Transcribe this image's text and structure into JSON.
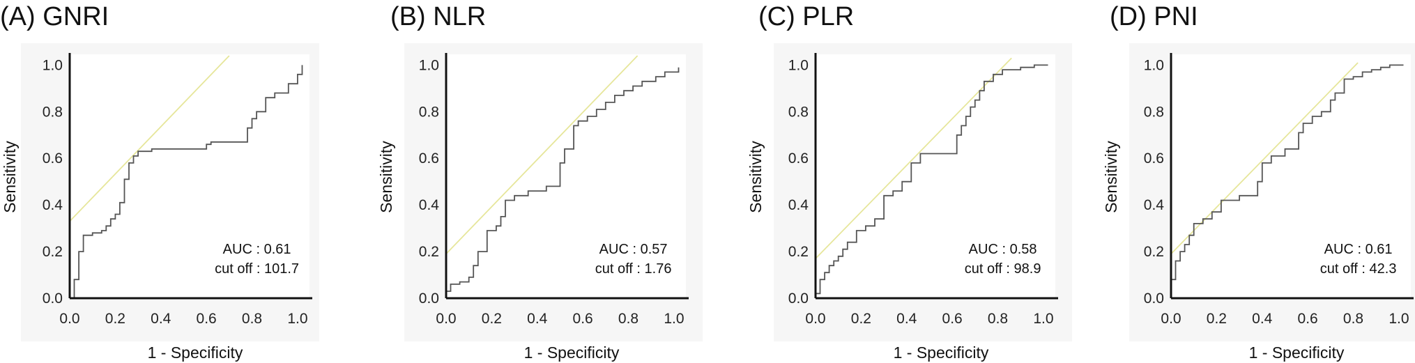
{
  "chart_data": [
    {
      "type": "line",
      "panel_title": "(A) GNRI",
      "xlabel": "1 - Specificity",
      "ylabel": "Sensitivity",
      "xlim": [
        0,
        1.04
      ],
      "ylim": [
        0,
        1.04
      ],
      "xticks": [
        "0.0",
        "0.2",
        "0.4",
        "0.6",
        "0.8",
        "1.0"
      ],
      "yticks": [
        "0.0",
        "0.2",
        "0.4",
        "0.6",
        "0.8",
        "1.0"
      ],
      "annotation": {
        "auc": "AUC : 0.61",
        "cutoff": "cut off : 101.7"
      },
      "reference_line": {
        "name": "tangent",
        "color": "#e6e69a",
        "x": [
          0,
          0.7
        ],
        "y": [
          0.33,
          1.04
        ]
      },
      "series": [
        {
          "name": "ROC",
          "color": "#555555",
          "x": [
            0,
            0.02,
            0.02,
            0.04,
            0.04,
            0.06,
            0.06,
            0.1,
            0.1,
            0.14,
            0.14,
            0.16,
            0.16,
            0.18,
            0.18,
            0.2,
            0.2,
            0.22,
            0.22,
            0.24,
            0.24,
            0.26,
            0.26,
            0.28,
            0.28,
            0.3,
            0.3,
            0.36,
            0.36,
            0.6,
            0.6,
            0.62,
            0.62,
            0.78,
            0.78,
            0.8,
            0.8,
            0.82,
            0.82,
            0.86,
            0.86,
            0.9,
            0.9,
            0.96,
            0.96,
            1.0,
            1.0,
            1.02,
            1.02
          ],
          "y": [
            0,
            0,
            0.08,
            0.08,
            0.2,
            0.2,
            0.27,
            0.27,
            0.28,
            0.28,
            0.29,
            0.29,
            0.31,
            0.31,
            0.34,
            0.34,
            0.36,
            0.36,
            0.41,
            0.41,
            0.51,
            0.51,
            0.58,
            0.58,
            0.61,
            0.61,
            0.63,
            0.63,
            0.64,
            0.64,
            0.66,
            0.66,
            0.67,
            0.67,
            0.73,
            0.73,
            0.77,
            0.77,
            0.8,
            0.8,
            0.86,
            0.86,
            0.88,
            0.88,
            0.92,
            0.92,
            0.96,
            0.96,
            1.0
          ]
        }
      ]
    },
    {
      "type": "line",
      "panel_title": "(B) NLR",
      "xlabel": "1 - Specificity",
      "ylabel": "Sensitivity",
      "xlim": [
        0,
        1.04
      ],
      "ylim": [
        0,
        1.04
      ],
      "xticks": [
        "0.0",
        "0.2",
        "0.4",
        "0.6",
        "0.8",
        "1.0"
      ],
      "yticks": [
        "0.0",
        "0.2",
        "0.4",
        "0.6",
        "0.8",
        "1.0"
      ],
      "annotation": {
        "auc": "AUC : 0.57",
        "cutoff": "cut off : 1.76"
      },
      "reference_line": {
        "name": "tangent",
        "color": "#e6e69a",
        "x": [
          0,
          0.84
        ],
        "y": [
          0.19,
          1.04
        ]
      },
      "series": [
        {
          "name": "ROC",
          "color": "#555555",
          "x": [
            0,
            0.02,
            0.02,
            0.06,
            0.06,
            0.1,
            0.1,
            0.12,
            0.12,
            0.14,
            0.14,
            0.18,
            0.18,
            0.22,
            0.22,
            0.24,
            0.24,
            0.26,
            0.26,
            0.3,
            0.3,
            0.36,
            0.36,
            0.44,
            0.44,
            0.5,
            0.5,
            0.52,
            0.52,
            0.56,
            0.56,
            0.58,
            0.58,
            0.62,
            0.62,
            0.66,
            0.66,
            0.7,
            0.7,
            0.74,
            0.74,
            0.78,
            0.78,
            0.82,
            0.82,
            0.86,
            0.86,
            0.92,
            0.92,
            0.96,
            0.96,
            1.02,
            1.02
          ],
          "y": [
            0.03,
            0.03,
            0.06,
            0.06,
            0.07,
            0.07,
            0.09,
            0.09,
            0.14,
            0.14,
            0.2,
            0.2,
            0.29,
            0.29,
            0.31,
            0.31,
            0.35,
            0.35,
            0.42,
            0.42,
            0.44,
            0.44,
            0.46,
            0.46,
            0.48,
            0.48,
            0.58,
            0.58,
            0.64,
            0.64,
            0.74,
            0.74,
            0.76,
            0.76,
            0.78,
            0.78,
            0.81,
            0.81,
            0.84,
            0.84,
            0.87,
            0.87,
            0.89,
            0.89,
            0.91,
            0.91,
            0.93,
            0.93,
            0.95,
            0.95,
            0.97,
            0.97,
            0.99
          ]
        }
      ]
    },
    {
      "type": "line",
      "panel_title": "(C) PLR",
      "xlabel": "1 - Specificity",
      "ylabel": "Sensitivity",
      "xlim": [
        0,
        1.04
      ],
      "ylim": [
        0,
        1.04
      ],
      "xticks": [
        "0.0",
        "0.2",
        "0.4",
        "0.6",
        "0.8",
        "1.0"
      ],
      "yticks": [
        "0.0",
        "0.2",
        "0.4",
        "0.6",
        "0.8",
        "1.0"
      ],
      "annotation": {
        "auc": "AUC : 0.58",
        "cutoff": "cut off : 98.9"
      },
      "reference_line": {
        "name": "tangent",
        "color": "#e6e69a",
        "x": [
          0,
          0.86
        ],
        "y": [
          0.17,
          1.03
        ]
      },
      "series": [
        {
          "name": "ROC",
          "color": "#555555",
          "x": [
            0,
            0.02,
            0.02,
            0.04,
            0.04,
            0.06,
            0.06,
            0.08,
            0.08,
            0.1,
            0.1,
            0.12,
            0.12,
            0.14,
            0.14,
            0.18,
            0.18,
            0.22,
            0.22,
            0.26,
            0.26,
            0.3,
            0.3,
            0.34,
            0.34,
            0.38,
            0.38,
            0.42,
            0.42,
            0.46,
            0.46,
            0.62,
            0.62,
            0.64,
            0.64,
            0.66,
            0.66,
            0.68,
            0.68,
            0.7,
            0.7,
            0.72,
            0.72,
            0.74,
            0.74,
            0.78,
            0.78,
            0.82,
            0.82,
            0.9,
            0.9,
            0.96,
            0.96,
            1.02
          ],
          "y": [
            0.02,
            0.02,
            0.08,
            0.08,
            0.11,
            0.11,
            0.14,
            0.14,
            0.16,
            0.16,
            0.18,
            0.18,
            0.21,
            0.21,
            0.24,
            0.24,
            0.29,
            0.29,
            0.31,
            0.31,
            0.34,
            0.34,
            0.44,
            0.44,
            0.46,
            0.46,
            0.5,
            0.5,
            0.58,
            0.58,
            0.62,
            0.62,
            0.7,
            0.7,
            0.74,
            0.74,
            0.78,
            0.78,
            0.82,
            0.82,
            0.85,
            0.85,
            0.89,
            0.89,
            0.93,
            0.93,
            0.96,
            0.96,
            0.98,
            0.98,
            0.99,
            0.99,
            1.0,
            1.0
          ]
        }
      ]
    },
    {
      "type": "line",
      "panel_title": "(D) PNI",
      "xlabel": "1 - Specificity",
      "ylabel": "Sensitivity",
      "xlim": [
        0,
        1.04
      ],
      "ylim": [
        0,
        1.04
      ],
      "xticks": [
        "0.0",
        "0.2",
        "0.4",
        "0.6",
        "0.8",
        "1.0"
      ],
      "yticks": [
        "0.0",
        "0.2",
        "0.4",
        "0.6",
        "0.8",
        "1.0"
      ],
      "annotation": {
        "auc": "AUC : 0.61",
        "cutoff": "cut off : 42.3"
      },
      "reference_line": {
        "name": "tangent",
        "color": "#e6e69a",
        "x": [
          0,
          0.82
        ],
        "y": [
          0.19,
          1.01
        ]
      },
      "series": [
        {
          "name": "ROC",
          "color": "#555555",
          "x": [
            0,
            0.02,
            0.02,
            0.04,
            0.04,
            0.06,
            0.06,
            0.08,
            0.08,
            0.1,
            0.1,
            0.14,
            0.14,
            0.18,
            0.18,
            0.22,
            0.22,
            0.3,
            0.3,
            0.38,
            0.38,
            0.4,
            0.4,
            0.44,
            0.44,
            0.5,
            0.5,
            0.56,
            0.56,
            0.58,
            0.58,
            0.62,
            0.62,
            0.66,
            0.66,
            0.7,
            0.7,
            0.72,
            0.72,
            0.76,
            0.76,
            0.8,
            0.8,
            0.84,
            0.84,
            0.88,
            0.88,
            0.92,
            0.92,
            0.96,
            0.96,
            1.02
          ],
          "y": [
            0.08,
            0.08,
            0.16,
            0.16,
            0.2,
            0.2,
            0.23,
            0.23,
            0.27,
            0.27,
            0.32,
            0.32,
            0.34,
            0.34,
            0.37,
            0.37,
            0.42,
            0.42,
            0.44,
            0.44,
            0.5,
            0.5,
            0.58,
            0.58,
            0.61,
            0.61,
            0.64,
            0.64,
            0.71,
            0.71,
            0.75,
            0.75,
            0.78,
            0.78,
            0.8,
            0.8,
            0.85,
            0.85,
            0.88,
            0.88,
            0.94,
            0.94,
            0.95,
            0.95,
            0.97,
            0.97,
            0.98,
            0.98,
            0.99,
            0.99,
            1.0,
            1.0
          ]
        }
      ]
    }
  ]
}
